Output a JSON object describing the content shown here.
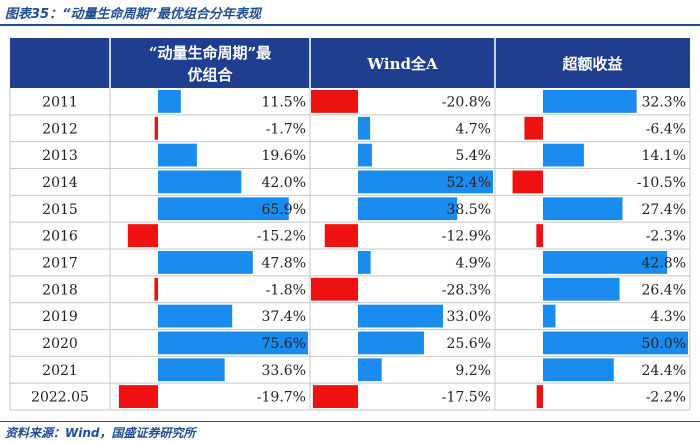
{
  "title": "图表35：“动量生命周期”最优组合分年表现",
  "source": "资料来源：Wind，国盛证券研究所",
  "colors": {
    "header_bg": "#1f3e90",
    "positive": "#1a8cf0",
    "negative": "#ee1111",
    "grid": "#c8c8c8"
  },
  "chart_data": {
    "type": "table",
    "columns": [
      {
        "label_lines": [
          "“动量生命周期”最",
          "优组合"
        ],
        "max": 75.6
      },
      {
        "label_lines": [
          "Wind全A"
        ],
        "max": 52.4
      },
      {
        "label_lines": [
          "超额收益"
        ],
        "max": 50.0
      }
    ],
    "rows": [
      {
        "year": "2011",
        "values": [
          11.5,
          -20.8,
          32.3
        ]
      },
      {
        "year": "2012",
        "values": [
          -1.7,
          4.7,
          -6.4
        ]
      },
      {
        "year": "2013",
        "values": [
          19.6,
          5.4,
          14.1
        ]
      },
      {
        "year": "2014",
        "values": [
          42.0,
          52.4,
          -10.5
        ]
      },
      {
        "year": "2015",
        "values": [
          65.9,
          38.5,
          27.4
        ]
      },
      {
        "year": "2016",
        "values": [
          -15.2,
          -12.9,
          -2.3
        ]
      },
      {
        "year": "2017",
        "values": [
          47.8,
          4.9,
          42.8
        ]
      },
      {
        "year": "2018",
        "values": [
          -1.8,
          -28.3,
          26.4
        ]
      },
      {
        "year": "2019",
        "values": [
          37.4,
          33.0,
          4.3
        ]
      },
      {
        "year": "2020",
        "values": [
          75.6,
          25.6,
          50.0
        ]
      },
      {
        "year": "2021",
        "values": [
          33.6,
          9.2,
          24.4
        ]
      },
      {
        "year": "2022.05",
        "values": [
          -19.7,
          -17.5,
          -2.2
        ]
      }
    ]
  }
}
